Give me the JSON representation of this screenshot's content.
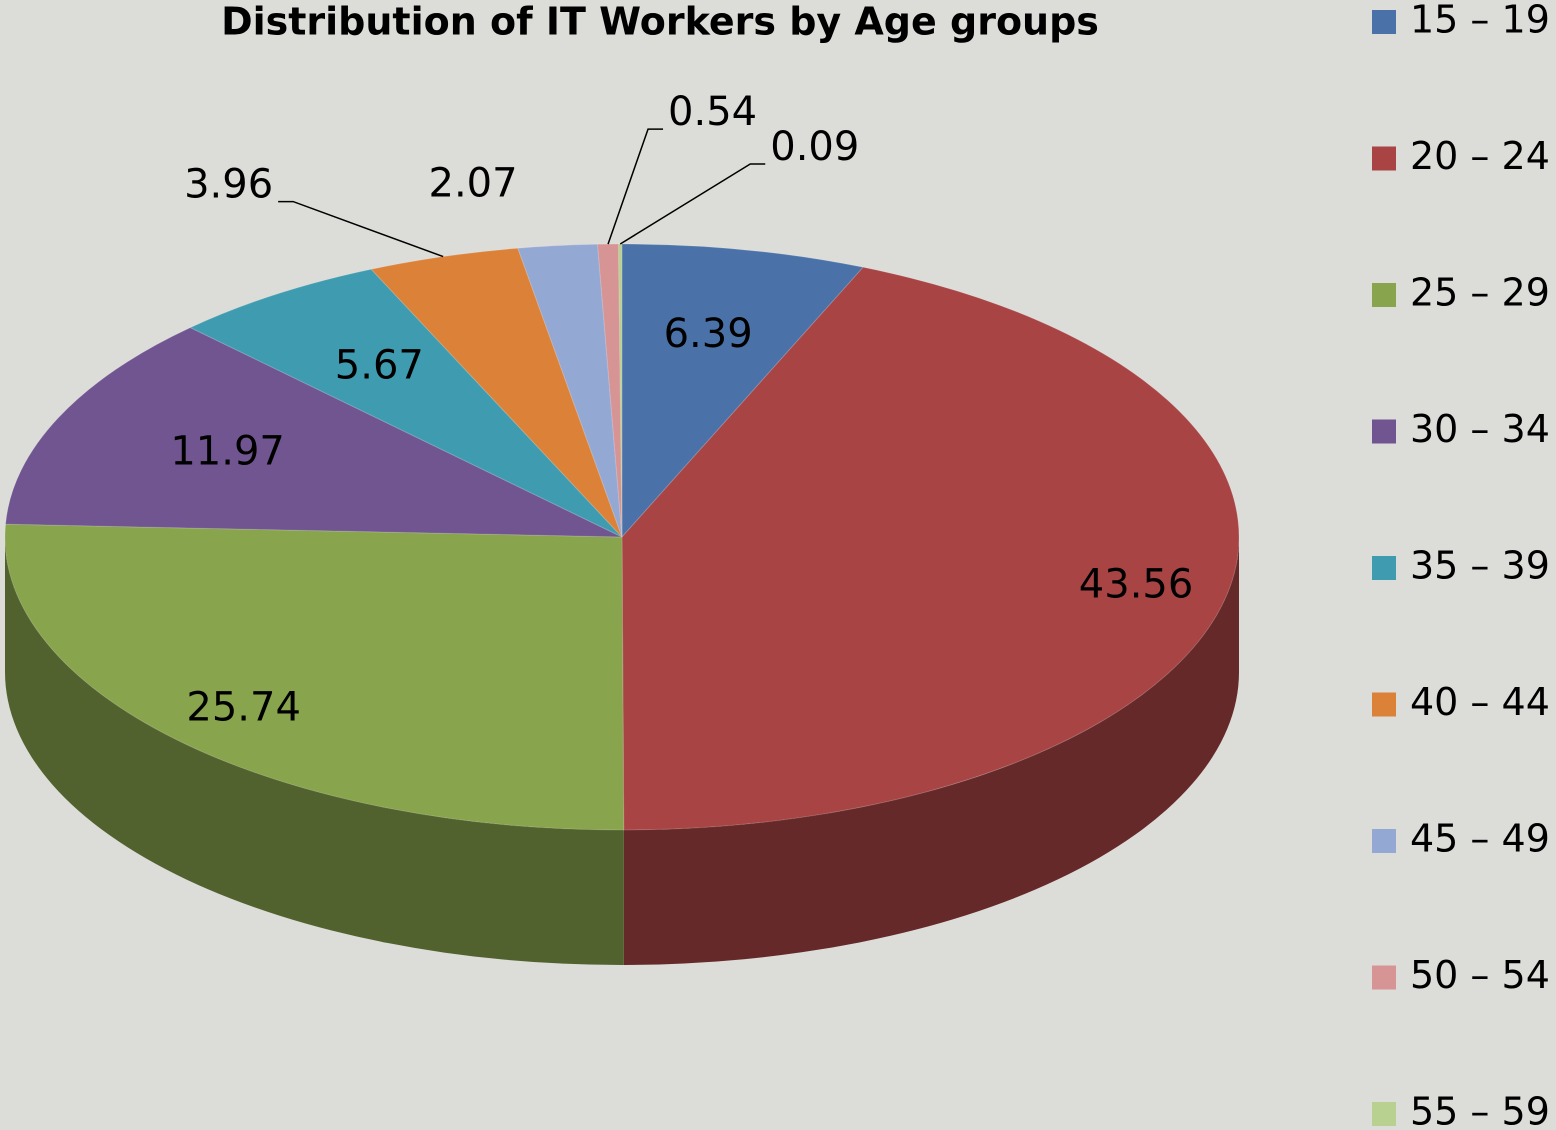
{
  "chart_data": {
    "type": "pie3d",
    "title": "Distribution of IT Workers by Age groups",
    "categories": [
      "15 – 19",
      "20 – 24",
      "25 – 29",
      "30 – 34",
      "35 – 39",
      "40 – 44",
      "45 – 49",
      "50 – 54",
      "55 – 59"
    ],
    "series": [
      {
        "values": [
          6.39,
          43.56,
          25.74,
          11.97,
          5.67,
          3.96,
          2.07,
          0.54,
          0.09
        ],
        "colors": [
          "#4a72a8",
          "#a84444",
          "#88a44c",
          "#705590",
          "#3f9cb0",
          "#dc8238",
          "#94a8d4",
          "#d69494",
          "#b8d090"
        ]
      }
    ],
    "legend": "right"
  }
}
